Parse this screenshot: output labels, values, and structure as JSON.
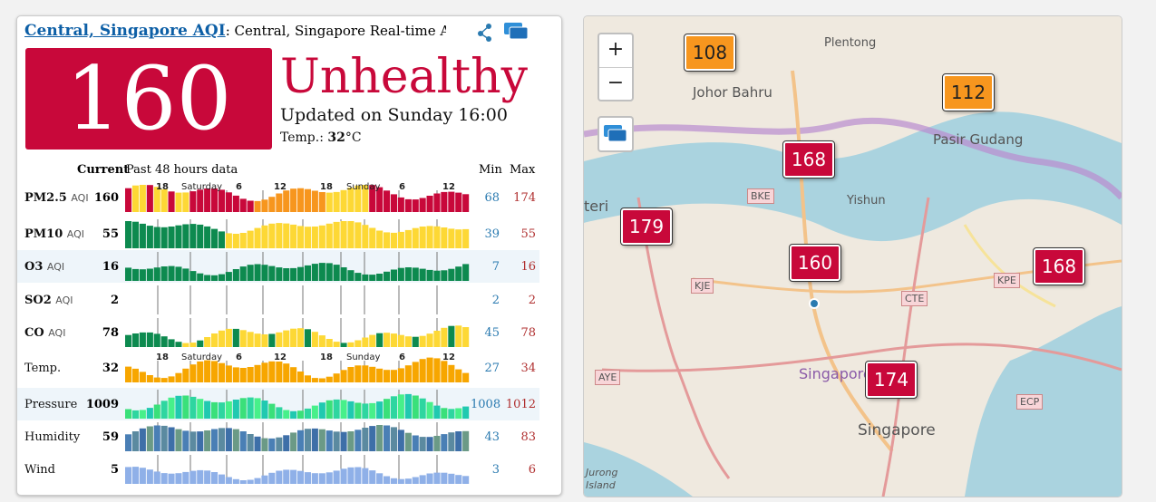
{
  "station": {
    "title_link": "Central, Singapore AQI",
    "title_rest": ": Central, Singapore Real-time Air Quality Index (AQI).",
    "aqi": "160",
    "level": "Unhealthy",
    "updated": "Updated on Sunday 16:00",
    "temp_label": "Temp.: ",
    "temp_value": "32",
    "temp_unit": "°C",
    "icons": [
      "share-icon",
      "screen-icon"
    ],
    "colors": {
      "unhealthy": "#c8083a",
      "sensitive": "#f7961e",
      "link": "#0d5fa6"
    }
  },
  "table": {
    "current_label": "Current",
    "past_label": "Past 48 hours data",
    "min_label": "Min",
    "max_label": "Max",
    "time_labels": [
      "18",
      "Saturday",
      "6",
      "12",
      "18",
      "Sunday",
      "6",
      "12"
    ],
    "rows": [
      {
        "name": "PM2.5",
        "unit": "AQI",
        "current": "160",
        "min": "68",
        "max": "174"
      },
      {
        "name": "PM10",
        "unit": "AQI",
        "current": "55",
        "min": "39",
        "max": "55"
      },
      {
        "name": "O3",
        "unit": "AQI",
        "current": "16",
        "min": "7",
        "max": "16"
      },
      {
        "name": "SO2",
        "unit": "AQI",
        "current": "2",
        "min": "2",
        "max": "2"
      },
      {
        "name": "CO",
        "unit": "AQI",
        "current": "78",
        "min": "45",
        "max": "78"
      },
      {
        "name": "Temp.",
        "unit": "",
        "current": "32",
        "min": "27",
        "max": "34"
      },
      {
        "name": "Pressure",
        "unit": "",
        "current": "1009",
        "min": "1008",
        "max": "1012"
      },
      {
        "name": "Humidity",
        "unit": "",
        "current": "59",
        "min": "43",
        "max": "83"
      },
      {
        "name": "Wind",
        "unit": "",
        "current": "5",
        "min": "3",
        "max": "6"
      }
    ]
  },
  "map": {
    "zoom_in": "+",
    "zoom_out": "−",
    "markers": [
      {
        "value": "108",
        "level": "orange"
      },
      {
        "value": "112",
        "level": "orange"
      },
      {
        "value": "168",
        "level": "red"
      },
      {
        "value": "179",
        "level": "red"
      },
      {
        "value": "160",
        "level": "red"
      },
      {
        "value": "168",
        "level": "red"
      },
      {
        "value": "174",
        "level": "red"
      }
    ],
    "places": [
      "Johor Bahru",
      "Plentong",
      "Pasir Gudang",
      "Yishun",
      "Singapore",
      "Singapore",
      "teri",
      "Jurong Island"
    ],
    "roads": [
      "BKE",
      "KJE",
      "CTE",
      "KPE",
      "AYE",
      "ECP"
    ]
  }
}
